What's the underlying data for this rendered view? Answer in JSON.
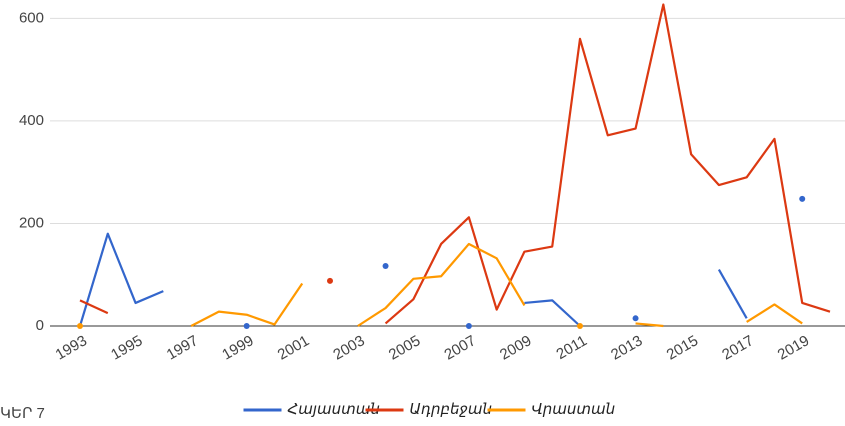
{
  "chart_data": {
    "type": "line",
    "caption": "ԿԵՐ 7",
    "x": [
      1993,
      1994,
      1995,
      1996,
      1997,
      1998,
      1999,
      2000,
      2001,
      2002,
      2003,
      2004,
      2005,
      2006,
      2007,
      2008,
      2009,
      2010,
      2011,
      2012,
      2013,
      2014,
      2015,
      2016,
      2017,
      2018,
      2019,
      2020
    ],
    "xlim": [
      1993,
      2020
    ],
    "xticks": [
      1993,
      1995,
      1997,
      1999,
      2001,
      2003,
      2005,
      2007,
      2009,
      2011,
      2013,
      2015,
      2017,
      2019
    ],
    "ylim": [
      0,
      630
    ],
    "yticks": [
      0,
      200,
      400,
      600
    ],
    "grid": true,
    "legend": "bottom",
    "series": [
      {
        "name": "Հայաստան",
        "color": "#3366cc",
        "values": [
          0,
          180,
          45,
          68,
          null,
          null,
          0,
          null,
          null,
          null,
          null,
          117,
          null,
          null,
          0,
          null,
          45,
          50,
          0,
          null,
          15,
          null,
          null,
          110,
          15,
          null,
          248,
          null
        ]
      },
      {
        "name": "Ադրբեջան",
        "color": "#dc3912",
        "values": [
          50,
          25,
          null,
          null,
          null,
          null,
          null,
          null,
          null,
          88,
          null,
          5,
          52,
          160,
          212,
          32,
          145,
          155,
          560,
          372,
          385,
          627,
          335,
          275,
          290,
          365,
          45,
          28
        ]
      },
      {
        "name": "Վրաստան",
        "color": "#ff9900",
        "values": [
          0,
          null,
          null,
          null,
          0,
          28,
          22,
          3,
          83,
          null,
          0,
          35,
          92,
          97,
          160,
          132,
          40,
          null,
          0,
          null,
          5,
          0,
          null,
          null,
          8,
          42,
          5,
          null
        ]
      }
    ]
  }
}
